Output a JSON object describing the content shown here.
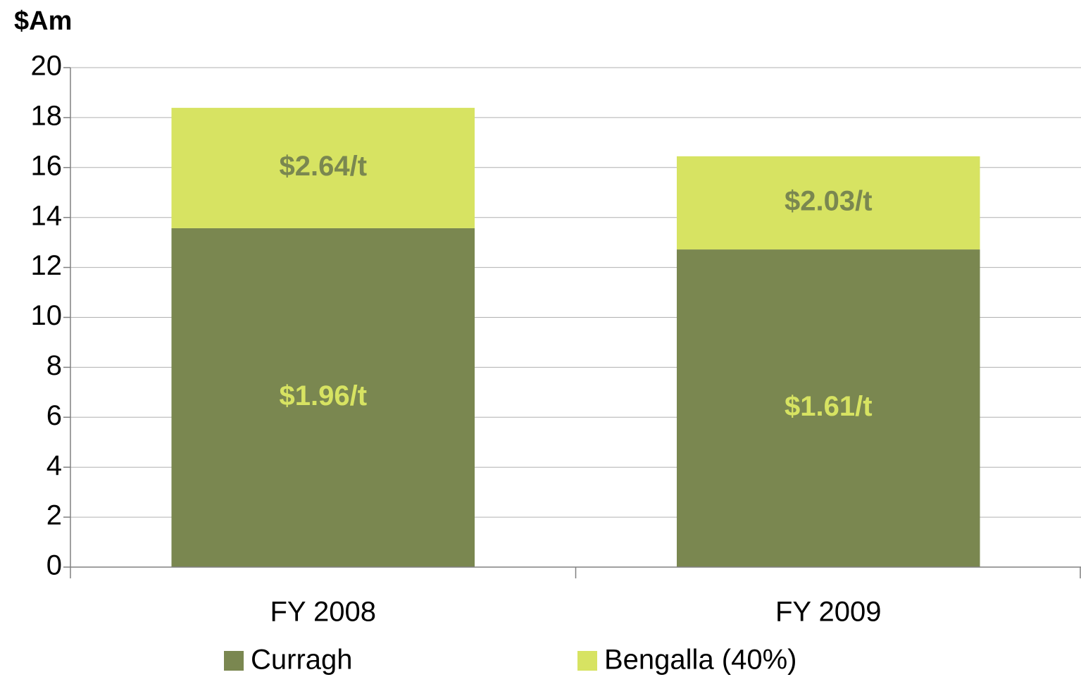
{
  "chart_data": {
    "type": "stacked-bar",
    "y_axis_label": "$Am",
    "categories": [
      "FY 2008",
      "FY 2009"
    ],
    "series": [
      {
        "name": "Curragh",
        "color": "#7a8750",
        "values": [
          13.57,
          12.72
        ],
        "annotations": [
          "$1.96/t",
          "$1.61/t"
        ],
        "annotation_color": "#d7e362"
      },
      {
        "name": "Bengalla (40%)",
        "color": "#d7e362",
        "values": [
          4.82,
          3.73
        ],
        "annotations": [
          "$2.64/t",
          "$2.03/t"
        ],
        "annotation_color": "#7a8750"
      }
    ],
    "ylim": [
      0,
      20
    ],
    "yticks": [
      0,
      2,
      4,
      6,
      8,
      10,
      12,
      14,
      16,
      18,
      20
    ],
    "grid": true,
    "legend": "bottom"
  }
}
